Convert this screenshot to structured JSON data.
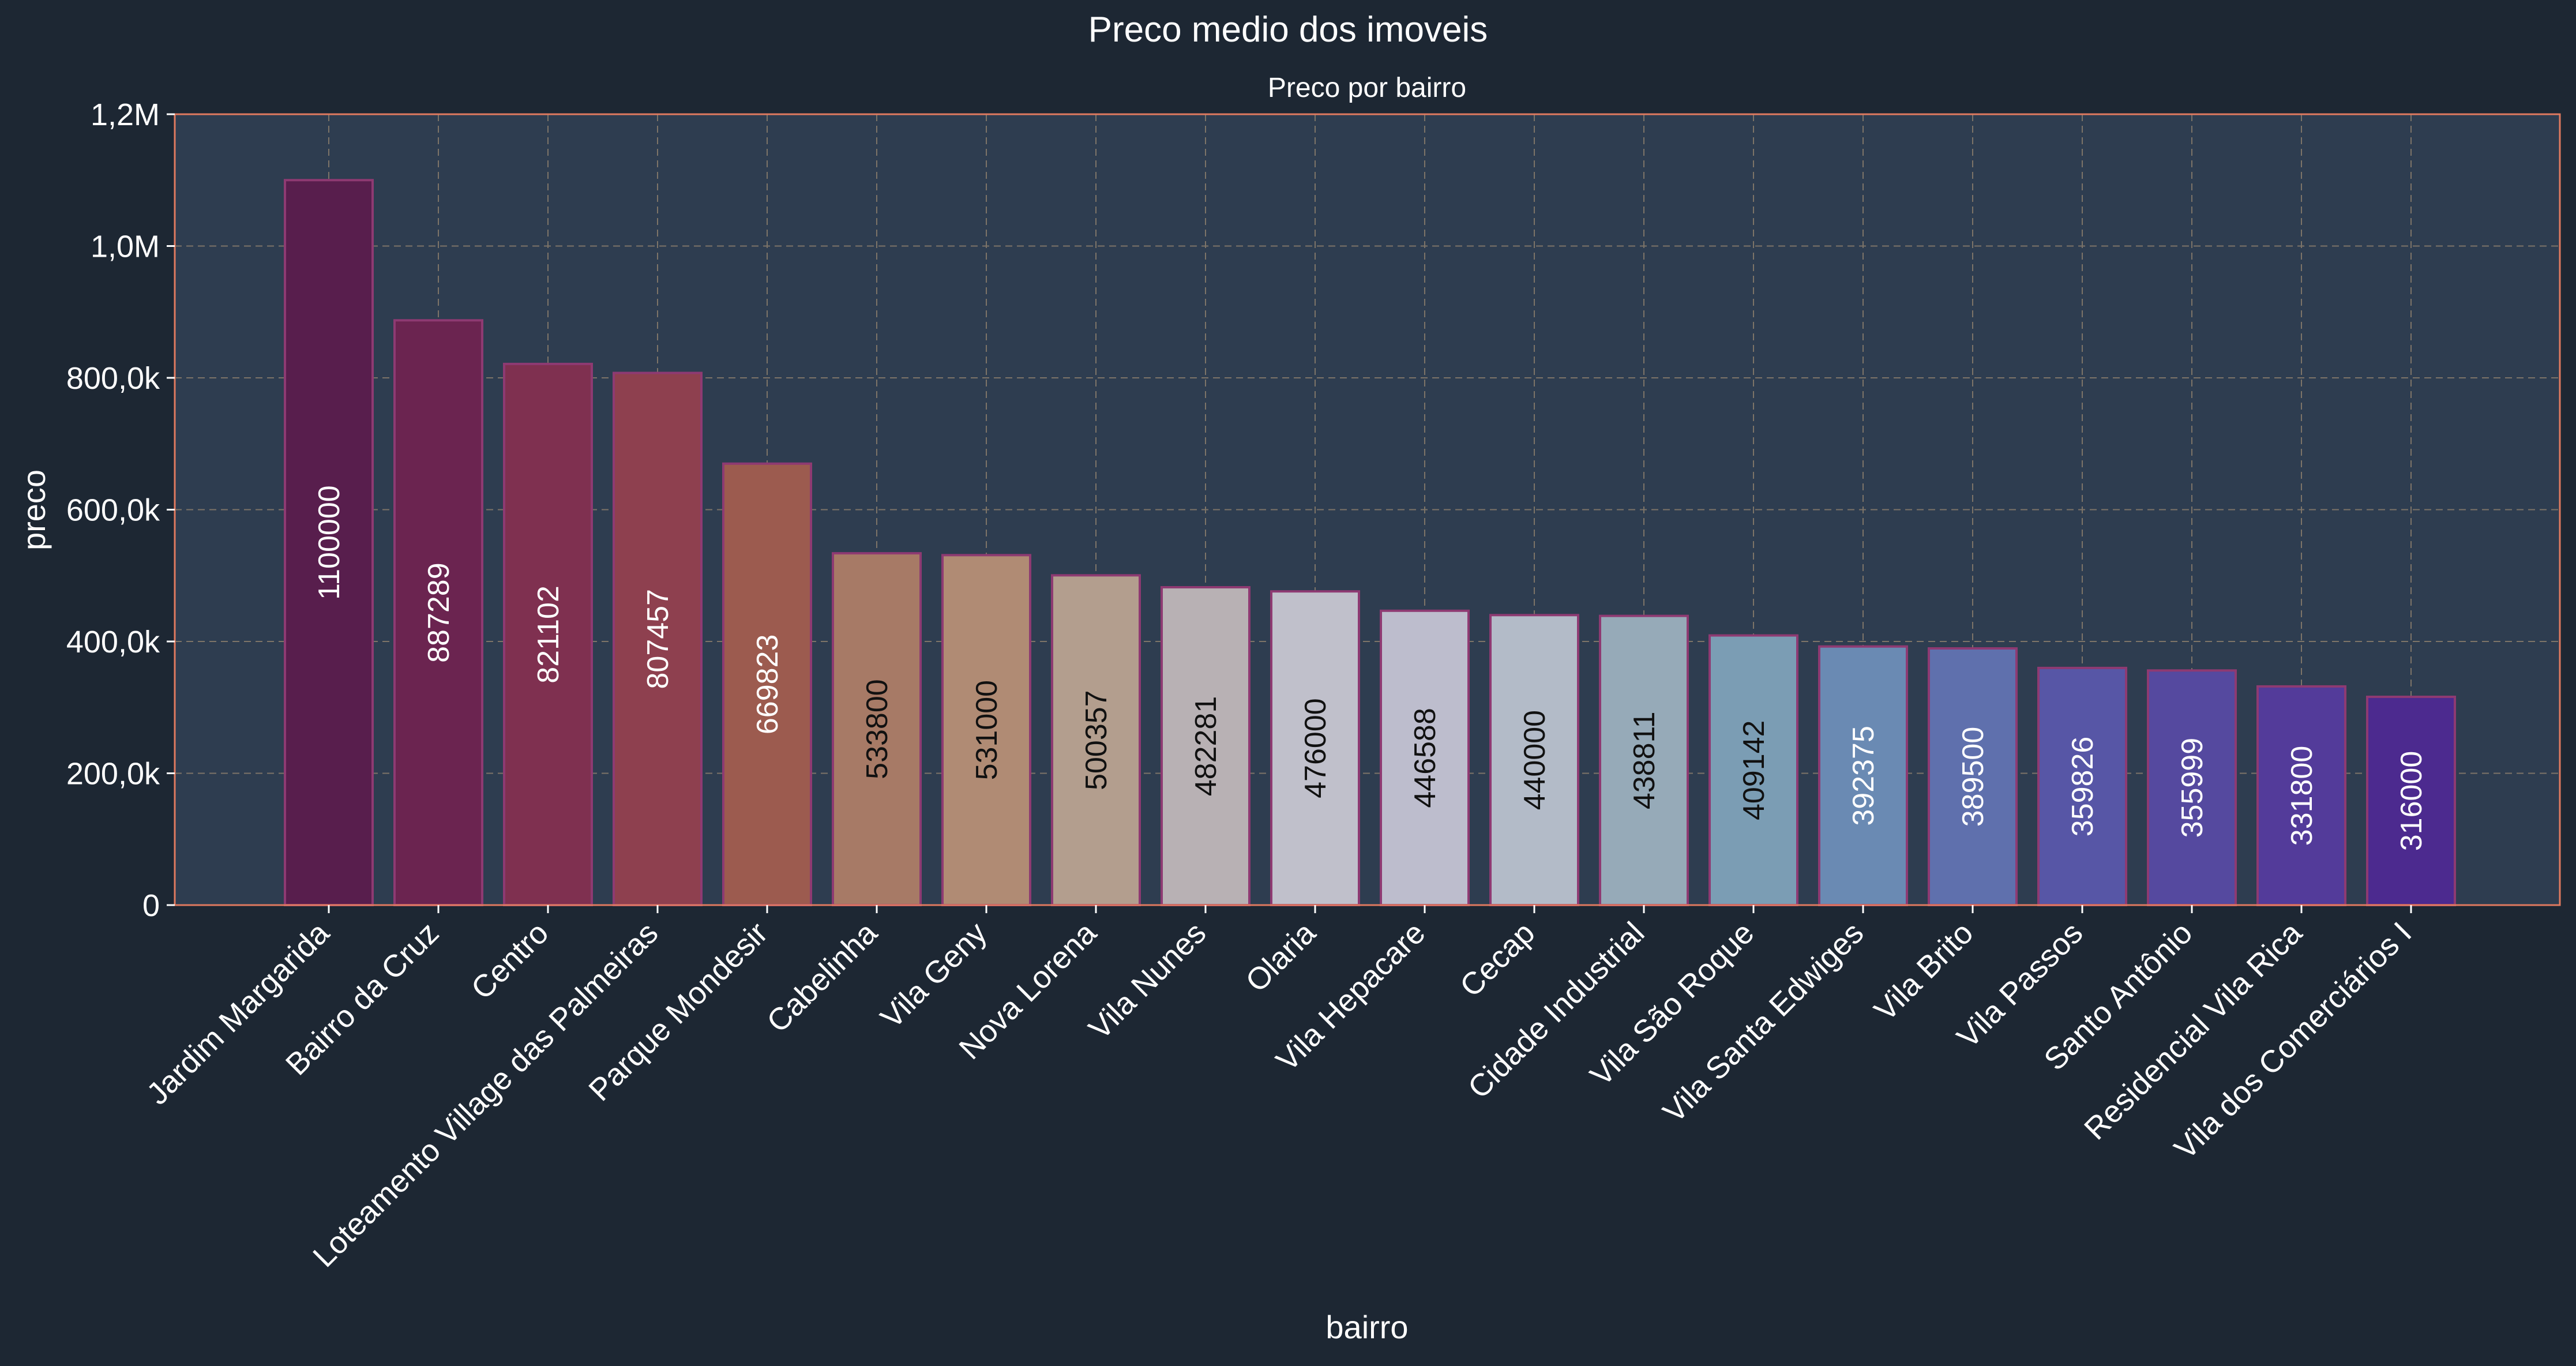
{
  "figure": {
    "title": "Preco medio dos imoveis"
  },
  "colors": {
    "background": "#1d2733",
    "plot_background": "#2e3d50",
    "frame": "#e07a5f",
    "grid": "#7d7468",
    "bar_edge": "#8e3a72",
    "text": "#ffffff",
    "dark_label": "#111111",
    "bar_palette": [
      "#581e4d",
      "#6b2450",
      "#7f3050",
      "#8e404f",
      "#9c5b4f",
      "#a77a66",
      "#b08b74",
      "#b39e8e",
      "#b8b1b4",
      "#c0c0cb",
      "#bdbdcd",
      "#b3bbc8",
      "#96aab8",
      "#7b9db4",
      "#6a8ab3",
      "#5f70ad",
      "#5756a6",
      "#55499f",
      "#533b9a",
      "#4c2a8f"
    ]
  },
  "chart_data": {
    "type": "bar",
    "title": "Preco por bairro",
    "xlabel": "bairro",
    "ylabel": "preco",
    "ylim": [
      0,
      1200000
    ],
    "yticks": [
      0,
      200000,
      400000,
      600000,
      800000,
      1000000,
      1200000
    ],
    "ytick_labels": [
      "0",
      "200,0k",
      "400,0k",
      "600,0k",
      "800,0k",
      "1,0M",
      "1,2M"
    ],
    "grid": true,
    "categories": [
      "Jardim Margarida",
      "Bairro da Cruz",
      "Centro",
      "Loteamento Village das Palmeiras",
      "Parque Mondesir",
      "Cabelinha",
      "Vila Geny",
      "Nova Lorena",
      "Vila Nunes",
      "Olaria",
      "Vila Hepacare",
      "Cecap",
      "Cidade Industrial",
      "Vila São Roque",
      "Vila Santa Edwiges",
      "Vila Brito",
      "Vila Passos",
      "Santo Antônio",
      "Residencial Vila Rica",
      "Vila dos Comerciários I"
    ],
    "values": [
      1100000,
      887289,
      821102,
      807457,
      669823,
      533800,
      531000,
      500357,
      482281,
      476000,
      446588,
      440000,
      438811,
      409142,
      392375,
      389500,
      359826,
      355999,
      331800,
      316000
    ],
    "value_labels": [
      "1100000",
      "887289",
      "821102",
      "807457",
      "669823",
      "533800",
      "531000",
      "500357",
      "482281",
      "476000",
      "446588",
      "440000",
      "438811",
      "409142",
      "392375",
      "389500",
      "359826",
      "355999",
      "331800",
      "316000"
    ]
  }
}
